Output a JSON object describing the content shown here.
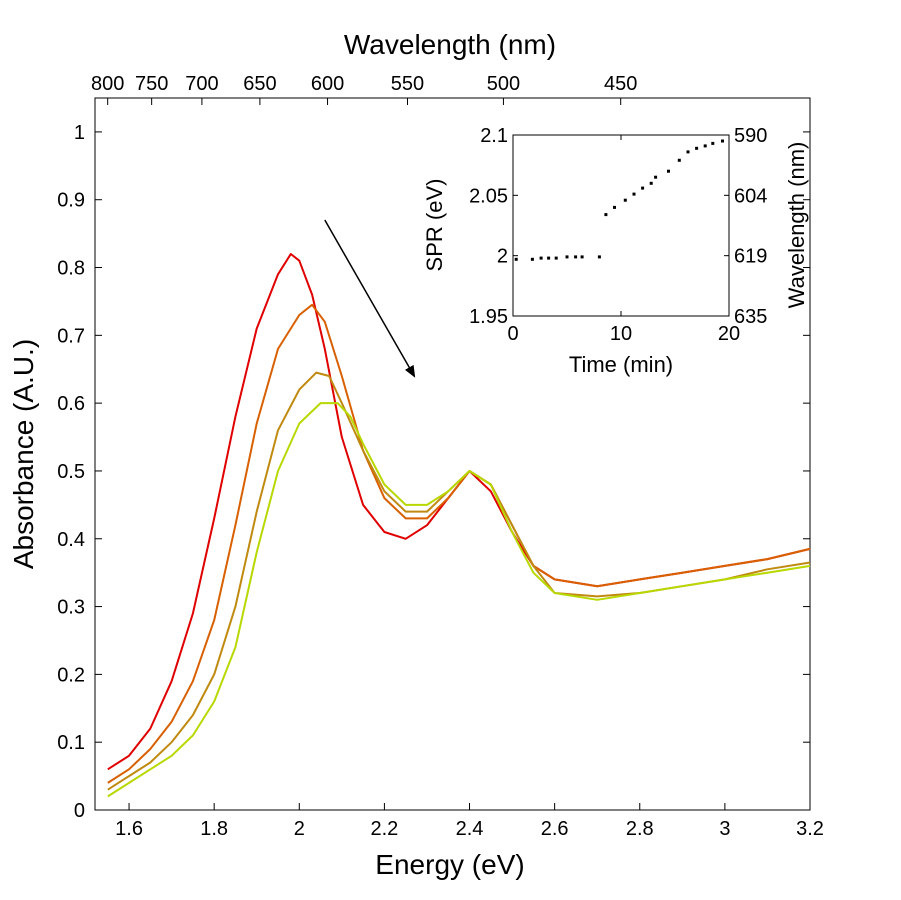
{
  "chart_data": [
    {
      "type": "line",
      "title": "",
      "xlabel": "Energy (eV)",
      "ylabel": "Absorbance (A.U.)",
      "top_xlabel": "Wavelength (nm)",
      "xlim": [
        1.52,
        3.2
      ],
      "ylim": [
        0,
        1.05
      ],
      "x_ticks": [
        1.6,
        1.8,
        2,
        2.2,
        2.4,
        2.6,
        2.8,
        3,
        3.2
      ],
      "x_tick_labels": [
        "1.6",
        "1.8",
        "2",
        "2.2",
        "2.4",
        "2.6",
        "2.8",
        "3",
        "3.2"
      ],
      "y_ticks": [
        0,
        0.1,
        0.2,
        0.3,
        0.4,
        0.5,
        0.6,
        0.7,
        0.8,
        0.9,
        1
      ],
      "y_tick_labels": [
        "0",
        "0.1",
        "0.2",
        "0.3",
        "0.4",
        "0.5",
        "0.6",
        "0.7",
        "0.8",
        "0.9",
        "1"
      ],
      "top_ticks_nm": [
        800,
        750,
        700,
        650,
        600,
        550,
        500,
        450
      ],
      "top_tick_labels": [
        "800",
        "750",
        "700",
        "650",
        "600",
        "550",
        "500",
        "450"
      ],
      "grid": false,
      "legend": "none",
      "annotations": [
        {
          "type": "arrow",
          "from": [
            2.06,
            0.87
          ],
          "to": [
            2.27,
            0.64
          ]
        }
      ],
      "series": [
        {
          "color": "#e00000",
          "x": [
            1.55,
            1.6,
            1.65,
            1.7,
            1.75,
            1.8,
            1.85,
            1.9,
            1.95,
            1.98,
            2.0,
            2.03,
            2.06,
            2.1,
            2.15,
            2.2,
            2.25,
            2.3,
            2.35,
            2.4,
            2.45,
            2.5,
            2.55,
            2.6,
            2.7,
            2.8,
            2.9,
            3.0,
            3.1,
            3.2
          ],
          "y": [
            0.06,
            0.08,
            0.12,
            0.19,
            0.29,
            0.43,
            0.58,
            0.71,
            0.79,
            0.82,
            0.81,
            0.76,
            0.68,
            0.55,
            0.45,
            0.41,
            0.4,
            0.42,
            0.46,
            0.5,
            0.47,
            0.41,
            0.36,
            0.34,
            0.33,
            0.34,
            0.35,
            0.36,
            0.37,
            0.385
          ]
        },
        {
          "color": "#d86000",
          "x": [
            1.55,
            1.6,
            1.65,
            1.7,
            1.75,
            1.8,
            1.85,
            1.9,
            1.95,
            2.0,
            2.03,
            2.06,
            2.1,
            2.15,
            2.2,
            2.25,
            2.3,
            2.35,
            2.4,
            2.45,
            2.5,
            2.55,
            2.6,
            2.7,
            2.8,
            2.9,
            3.0,
            3.1,
            3.2
          ],
          "y": [
            0.04,
            0.06,
            0.09,
            0.13,
            0.19,
            0.28,
            0.42,
            0.57,
            0.68,
            0.73,
            0.745,
            0.72,
            0.64,
            0.53,
            0.46,
            0.43,
            0.43,
            0.46,
            0.5,
            0.48,
            0.42,
            0.36,
            0.34,
            0.33,
            0.34,
            0.35,
            0.36,
            0.37,
            0.385
          ]
        },
        {
          "color": "#c08a10",
          "x": [
            1.55,
            1.6,
            1.65,
            1.7,
            1.75,
            1.8,
            1.85,
            1.9,
            1.95,
            2.0,
            2.04,
            2.07,
            2.1,
            2.15,
            2.2,
            2.25,
            2.3,
            2.35,
            2.4,
            2.45,
            2.5,
            2.55,
            2.6,
            2.7,
            2.8,
            2.9,
            3.0,
            3.1,
            3.2
          ],
          "y": [
            0.03,
            0.05,
            0.07,
            0.1,
            0.14,
            0.2,
            0.3,
            0.44,
            0.56,
            0.62,
            0.645,
            0.64,
            0.6,
            0.53,
            0.47,
            0.44,
            0.44,
            0.47,
            0.5,
            0.48,
            0.42,
            0.36,
            0.32,
            0.315,
            0.32,
            0.33,
            0.34,
            0.355,
            0.365
          ]
        },
        {
          "color": "#b8d800",
          "x": [
            1.55,
            1.6,
            1.65,
            1.7,
            1.75,
            1.8,
            1.85,
            1.9,
            1.95,
            2.0,
            2.05,
            2.09,
            2.12,
            2.15,
            2.2,
            2.25,
            2.3,
            2.35,
            2.4,
            2.45,
            2.5,
            2.55,
            2.6,
            2.7,
            2.8,
            2.9,
            3.0,
            3.1,
            3.2
          ],
          "y": [
            0.02,
            0.04,
            0.06,
            0.08,
            0.11,
            0.16,
            0.24,
            0.38,
            0.5,
            0.57,
            0.6,
            0.6,
            0.58,
            0.54,
            0.48,
            0.45,
            0.45,
            0.47,
            0.5,
            0.48,
            0.41,
            0.35,
            0.32,
            0.31,
            0.32,
            0.33,
            0.34,
            0.35,
            0.36
          ]
        }
      ]
    },
    {
      "type": "scatter",
      "title": "",
      "xlabel": "Time (min)",
      "ylabel": "SPR (eV)",
      "right_ylabel": "Wavelength (nm)",
      "xlim": [
        0,
        20
      ],
      "ylim": [
        1.95,
        2.1
      ],
      "x_ticks": [
        0,
        10,
        20
      ],
      "x_tick_labels": [
        "0",
        "10",
        "20"
      ],
      "y_ticks": [
        1.95,
        2,
        2.05,
        2.1
      ],
      "y_tick_labels": [
        "1.95",
        "2",
        "2.05",
        "2.1"
      ],
      "right_tick_values": [
        1.95,
        2,
        2.05,
        2.1
      ],
      "right_tick_labels": [
        "635",
        "619",
        "604",
        "590"
      ],
      "grid": false,
      "legend": "none",
      "marker_color": "#000000",
      "x": [
        0.3,
        1.8,
        2.6,
        3.3,
        4.0,
        5.0,
        5.8,
        6.4,
        8.0,
        8.6,
        9.4,
        10.4,
        11.2,
        12.0,
        12.8,
        13.2,
        14.4,
        15.4,
        16.2,
        17.0,
        17.8,
        18.5,
        19.4
      ],
      "y": [
        1.997,
        1.997,
        1.998,
        1.998,
        1.998,
        1.999,
        1.999,
        1.999,
        1.999,
        2.034,
        2.04,
        2.046,
        2.051,
        2.056,
        2.06,
        2.065,
        2.07,
        2.079,
        2.086,
        2.089,
        2.091,
        2.093,
        2.095
      ]
    }
  ]
}
